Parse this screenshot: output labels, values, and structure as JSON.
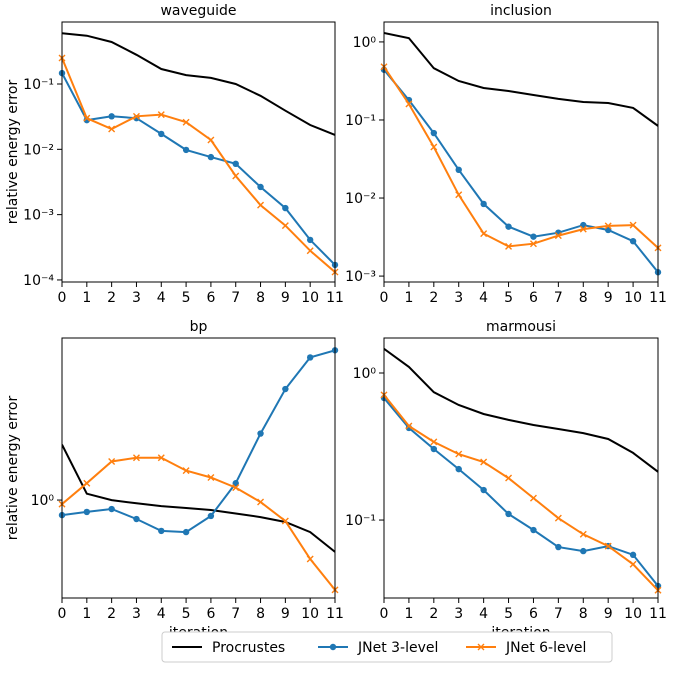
{
  "legend": "bottom",
  "chart_data": [
    {
      "type": "line",
      "title": "waveguide",
      "ylabel": "relative energy error",
      "log_y": true,
      "x": [
        0,
        1,
        2,
        3,
        4,
        5,
        6,
        7,
        8,
        9,
        10,
        11
      ],
      "xlim": [
        0,
        11
      ],
      "xticks": [
        0,
        1,
        2,
        3,
        4,
        5,
        6,
        7,
        8,
        9,
        10,
        11
      ],
      "ylim": [
        9.3e-05,
        0.89
      ],
      "yticks": [
        {
          "value": 0.0001,
          "label": "10⁻⁴"
        },
        {
          "value": 0.001,
          "label": "10⁻³"
        },
        {
          "value": 0.01,
          "label": "10⁻²"
        },
        {
          "value": 0.1,
          "label": "10⁻¹"
        }
      ],
      "series": [
        {
          "name": "Procrustes",
          "color": "#000000",
          "marker": "none",
          "values": [
            0.6,
            0.55,
            0.44,
            0.28,
            0.17,
            0.137,
            0.124,
            0.1,
            0.066,
            0.039,
            0.0236,
            0.0166
          ]
        },
        {
          "name": "JNet 3-level",
          "color": "#1f77b4",
          "marker": "circle",
          "values": [
            0.147,
            0.028,
            0.032,
            0.03,
            0.0172,
            0.0098,
            0.0076,
            0.006,
            0.00265,
            0.00126,
            0.00041,
            0.00017
          ]
        },
        {
          "name": "JNet 6-level",
          "color": "#ff7f0e",
          "marker": "x",
          "values": [
            0.25,
            0.03,
            0.0205,
            0.032,
            0.034,
            0.026,
            0.0139,
            0.0039,
            0.0014,
            0.00068,
            0.00028,
            0.000132
          ]
        }
      ]
    },
    {
      "type": "line",
      "title": "inclusion",
      "log_y": true,
      "x": [
        0,
        1,
        2,
        3,
        4,
        5,
        6,
        7,
        8,
        9,
        10,
        11
      ],
      "xlim": [
        0,
        11
      ],
      "xticks": [
        0,
        1,
        2,
        3,
        4,
        5,
        6,
        7,
        8,
        9,
        10,
        11
      ],
      "ylim": [
        0.00084,
        1.8
      ],
      "yticks": [
        {
          "value": 0.001,
          "label": "10⁻³"
        },
        {
          "value": 0.01,
          "label": "10⁻²"
        },
        {
          "value": 0.1,
          "label": "10⁻¹"
        },
        {
          "value": 1,
          "label": "10⁰"
        }
      ],
      "series": [
        {
          "name": "Procrustes",
          "color": "#000000",
          "marker": "none",
          "values": [
            1.3,
            1.12,
            0.46,
            0.316,
            0.257,
            0.235,
            0.209,
            0.186,
            0.17,
            0.165,
            0.143,
            0.084
          ]
        },
        {
          "name": "JNet 3-level",
          "color": "#1f77b4",
          "marker": "circle",
          "values": [
            0.44,
            0.18,
            0.068,
            0.023,
            0.0084,
            0.0043,
            0.0032,
            0.0036,
            0.0045,
            0.0039,
            0.0028,
            0.00112
          ]
        },
        {
          "name": "JNet 6-level",
          "color": "#ff7f0e",
          "marker": "x",
          "values": [
            0.48,
            0.16,
            0.045,
            0.011,
            0.0035,
            0.0024,
            0.0026,
            0.0033,
            0.004,
            0.0044,
            0.0045,
            0.0023
          ]
        }
      ]
    },
    {
      "type": "line",
      "title": "bp",
      "ylabel": "relative energy error",
      "xlabel": "iteration",
      "log_y": true,
      "x": [
        0,
        1,
        2,
        3,
        4,
        5,
        6,
        7,
        8,
        9,
        10,
        11
      ],
      "xlim": [
        0,
        11
      ],
      "xticks": [
        0,
        1,
        2,
        3,
        4,
        5,
        6,
        7,
        8,
        9,
        10,
        11
      ],
      "ylim": [
        0.545,
        2.73
      ],
      "yticks": [
        {
          "value": 1,
          "label": "10⁰"
        }
      ],
      "series": [
        {
          "name": "Procrustes",
          "color": "#000000",
          "marker": "none",
          "values": [
            1.41,
            1.04,
            1.0,
            0.98,
            0.963,
            0.952,
            0.94,
            0.92,
            0.9,
            0.873,
            0.82,
            0.725
          ]
        },
        {
          "name": "JNet 3-level",
          "color": "#1f77b4",
          "marker": "circle",
          "values": [
            0.911,
            0.929,
            0.946,
            0.889,
            0.826,
            0.82,
            0.906,
            1.11,
            1.51,
            1.99,
            2.42,
            2.53
          ]
        },
        {
          "name": "JNet 6-level",
          "color": "#ff7f0e",
          "marker": "x",
          "values": [
            0.975,
            1.11,
            1.27,
            1.3,
            1.3,
            1.2,
            1.15,
            1.08,
            0.988,
            0.878,
            0.694,
            0.573
          ]
        }
      ]
    },
    {
      "type": "line",
      "title": "marmousi",
      "xlabel": "iteration",
      "log_y": true,
      "x": [
        0,
        1,
        2,
        3,
        4,
        5,
        6,
        7,
        8,
        9,
        10,
        11
      ],
      "xlim": [
        0,
        11
      ],
      "xticks": [
        0,
        1,
        2,
        3,
        4,
        5,
        6,
        7,
        8,
        9,
        10,
        11
      ],
      "ylim": [
        0.0295,
        1.73
      ],
      "yticks": [
        {
          "value": 0.1,
          "label": "10⁻¹"
        },
        {
          "value": 1,
          "label": "10⁰"
        }
      ],
      "series": [
        {
          "name": "Procrustes",
          "color": "#000000",
          "marker": "none",
          "values": [
            1.46,
            1.1,
            0.74,
            0.606,
            0.526,
            0.48,
            0.443,
            0.416,
            0.39,
            0.356,
            0.286,
            0.213
          ]
        },
        {
          "name": "JNet 3-level",
          "color": "#1f77b4",
          "marker": "circle",
          "values": [
            0.676,
            0.423,
            0.304,
            0.222,
            0.16,
            0.11,
            0.0855,
            0.0655,
            0.0615,
            0.0665,
            0.058,
            0.0356
          ]
        },
        {
          "name": "JNet 6-level",
          "color": "#ff7f0e",
          "marker": "x",
          "values": [
            0.71,
            0.436,
            0.34,
            0.281,
            0.248,
            0.193,
            0.141,
            0.103,
            0.08,
            0.0665,
            0.05,
            0.0333
          ]
        }
      ]
    }
  ]
}
